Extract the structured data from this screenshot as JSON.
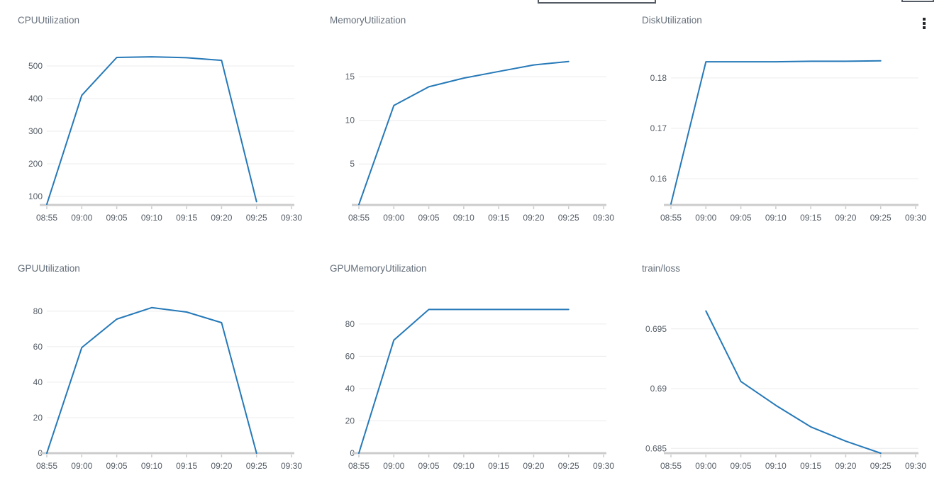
{
  "style": {
    "line_color": "#2679b8",
    "grid_color": "#ececec",
    "axis_color": "#cccccc",
    "tick_label_color": "#555d66",
    "title_color": "#66707b"
  },
  "top_bar": {
    "truncated_dropdown": "",
    "truncated_button": "",
    "menu_icon": "kebab-vertical-icon"
  },
  "chart_data": [
    {
      "type": "line",
      "title": "CPUUtilization",
      "x_tick_labels": [
        "08:55",
        "09:00",
        "09:05",
        "09:10",
        "09:15",
        "09:20",
        "09:25",
        "09:30"
      ],
      "xlim": [
        0,
        35
      ],
      "x_minutes": [
        0,
        5,
        10,
        15,
        20,
        25,
        30
      ],
      "values": [
        76,
        410,
        526,
        528,
        525,
        517,
        84
      ],
      "ytick_values": [
        100,
        200,
        300,
        400,
        500
      ],
      "ytick_labels": [
        "100",
        "200",
        "300",
        "400",
        "500"
      ],
      "ylim": [
        74,
        539
      ],
      "grid": true,
      "legend": "none"
    },
    {
      "type": "line",
      "title": "MemoryUtilization",
      "x_tick_labels": [
        "08:55",
        "09:00",
        "09:05",
        "09:10",
        "09:15",
        "09:20",
        "09:25",
        "09:30"
      ],
      "xlim": [
        0,
        35
      ],
      "x_minutes": [
        0,
        5,
        10,
        15,
        20,
        25,
        30
      ],
      "values": [
        0.35,
        11.7,
        13.85,
        14.85,
        15.6,
        16.35,
        16.75
      ],
      "ytick_values": [
        5,
        10,
        15
      ],
      "ytick_labels": [
        "5",
        "10",
        "15"
      ],
      "ylim": [
        0.3,
        17.7
      ],
      "grid": true,
      "legend": "none"
    },
    {
      "type": "line",
      "title": "DiskUtilization",
      "x_tick_labels": [
        "08:55",
        "09:00",
        "09:05",
        "09:10",
        "09:15",
        "09:20",
        "09:25",
        "09:30"
      ],
      "xlim": [
        0,
        35
      ],
      "x_minutes": [
        0,
        5,
        10,
        15,
        20,
        25,
        30
      ],
      "values": [
        0.155,
        0.1832,
        0.1832,
        0.1832,
        0.1833,
        0.1833,
        0.1834
      ],
      "ytick_values": [
        0.16,
        0.17,
        0.18
      ],
      "ytick_labels": [
        "0.16",
        "0.17",
        "0.18"
      ],
      "ylim": [
        0.1548,
        0.1849
      ],
      "grid": true,
      "legend": "none"
    },
    {
      "type": "line",
      "title": "GPUUtilization",
      "x_tick_labels": [
        "08:55",
        "09:00",
        "09:05",
        "09:10",
        "09:15",
        "09:20",
        "09:25",
        "09:30"
      ],
      "xlim": [
        0,
        35
      ],
      "x_minutes": [
        0,
        5,
        10,
        15,
        20,
        25,
        30
      ],
      "values": [
        0,
        59.5,
        75.5,
        82,
        79.5,
        73.5,
        0
      ],
      "ytick_values": [
        0,
        20,
        40,
        60,
        80
      ],
      "ytick_labels": [
        "0",
        "20",
        "40",
        "60",
        "80"
      ],
      "ylim": [
        0,
        85.5
      ],
      "grid": true,
      "legend": "none"
    },
    {
      "type": "line",
      "title": "GPUMemoryUtilization",
      "x_tick_labels": [
        "08:55",
        "09:00",
        "09:05",
        "09:10",
        "09:15",
        "09:20",
        "09:25",
        "09:30"
      ],
      "xlim": [
        0,
        35
      ],
      "x_minutes": [
        0,
        5,
        10,
        15,
        20,
        25,
        30
      ],
      "values": [
        0,
        70,
        89,
        89,
        89,
        89,
        89
      ],
      "ytick_values": [
        0,
        20,
        40,
        60,
        80
      ],
      "ytick_labels": [
        "0",
        "20",
        "40",
        "60",
        "80"
      ],
      "ylim": [
        0,
        94
      ],
      "grid": true,
      "legend": "none"
    },
    {
      "type": "line",
      "title": "train/loss",
      "x_tick_labels": [
        "08:55",
        "09:00",
        "09:05",
        "09:10",
        "09:15",
        "09:20",
        "09:25",
        "09:30"
      ],
      "xlim": [
        0,
        35
      ],
      "x_minutes": [
        5,
        10,
        15,
        20,
        25,
        30
      ],
      "values": [
        0.6965,
        0.6906,
        0.6886,
        0.6868,
        0.6856,
        0.6846
      ],
      "ytick_values": [
        0.685,
        0.69,
        0.695
      ],
      "ytick_labels": [
        "0.685",
        "0.69",
        "0.695"
      ],
      "ylim": [
        0.6846,
        0.6973
      ],
      "grid": true,
      "legend": "none"
    }
  ]
}
